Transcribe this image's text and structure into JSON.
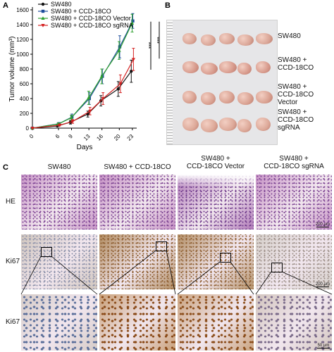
{
  "panels": {
    "a": {
      "letter": "A",
      "chart_data": {
        "type": "line",
        "x": [
          0,
          6,
          9,
          13,
          16,
          20,
          23
        ],
        "xlabel": "Days",
        "ylabel": "Tumor volume (mm³)",
        "ylim": [
          0,
          1600
        ],
        "yticks": [
          0,
          200,
          400,
          600,
          800,
          1000,
          1200,
          1400,
          1600
        ],
        "xticks": [
          0,
          6,
          9,
          13,
          16,
          20,
          23
        ],
        "grid": false,
        "legend_position": "top-left",
        "significance_marks": [
          "***",
          "***"
        ],
        "series": [
          {
            "name": "SW480",
            "color": "#111111",
            "marker": "circle",
            "values": [
              0,
              30,
              80,
              190,
              370,
              530,
              770
            ],
            "errors": [
              0,
              10,
              25,
              40,
              70,
              100,
              150
            ]
          },
          {
            "name": "SW480 + CCD-18CO",
            "color": "#1f4e9c",
            "marker": "square",
            "values": [
              0,
              60,
              150,
              400,
              700,
              1100,
              1450
            ],
            "errors": [
              0,
              15,
              40,
              80,
              100,
              150,
              100
            ]
          },
          {
            "name": "SW480 + CCD-18CO Vector",
            "color": "#2fa02f",
            "marker": "triangle",
            "values": [
              0,
              55,
              140,
              410,
              700,
              1050,
              1420
            ],
            "errors": [
              0,
              15,
              35,
              90,
              100,
              120,
              120
            ]
          },
          {
            "name": "SW480 + CCD-18CO sgRNA",
            "color": "#d42020",
            "marker": "inverted-triangle",
            "values": [
              0,
              40,
              90,
              230,
              400,
              600,
              930
            ],
            "errors": [
              0,
              10,
              25,
              50,
              80,
              120,
              150
            ]
          }
        ]
      }
    },
    "b": {
      "letter": "B",
      "rows": [
        {
          "label_lines": [
            "SW480"
          ],
          "count": 5,
          "color": "#d9a596"
        },
        {
          "label_lines": [
            "SW480 +",
            "CCD-18CO"
          ],
          "count": 5,
          "color": "#d79a8c"
        },
        {
          "label_lines": [
            "SW480 +",
            "CCD-18CO Vector"
          ],
          "count": 5,
          "color": "#d8a090"
        },
        {
          "label_lines": [
            "SW480 +",
            "CCD-18CO sgRNA"
          ],
          "count": 5,
          "color": "#dca898"
        }
      ]
    },
    "c": {
      "letter": "C",
      "columns": [
        {
          "label_lines": [
            "SW480"
          ]
        },
        {
          "label_lines": [
            "SW480 + CCD-18CO"
          ]
        },
        {
          "label_lines": [
            "SW480 +",
            "CCD-18CO Vector"
          ]
        },
        {
          "label_lines": [
            "SW480 +",
            "CCD-18CO sgRNA"
          ]
        }
      ],
      "rows": [
        {
          "label": "HE",
          "scale": "200 μm",
          "colors": [
            "#c795c6",
            "#c590c4",
            "#b07ab8",
            "#c793c6"
          ],
          "detail_colors": [
            "#7b3f92",
            "#7a4090",
            "#6f3a8b",
            "#7d4493"
          ]
        },
        {
          "label": "Ki67",
          "scale": "200 μm",
          "colors": [
            "#cfc5bd",
            "#b08a5f",
            "#b49068",
            "#d6d0ca"
          ],
          "detail_colors": [
            "#8a8fa8",
            "#8b5a2b",
            "#8e5e30",
            "#9d8f88"
          ]
        },
        {
          "label": "Ki67",
          "scale": "50 μm",
          "colors": [
            "#d6ccc8",
            "#c9a078",
            "#caa37f",
            "#d3c6bf"
          ],
          "detail_colors": [
            "#5a6e9a",
            "#8a4a18",
            "#8c4e1c",
            "#7b6b8a"
          ]
        }
      ]
    }
  }
}
